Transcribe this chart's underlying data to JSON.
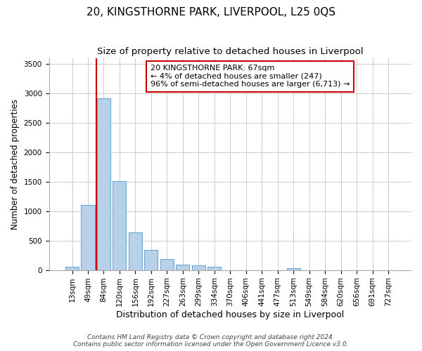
{
  "title": "20, KINGSTHORNE PARK, LIVERPOOL, L25 0QS",
  "subtitle": "Size of property relative to detached houses in Liverpool",
  "xlabel": "Distribution of detached houses by size in Liverpool",
  "ylabel": "Number of detached properties",
  "bar_color": "#b8d0e8",
  "bar_edge_color": "#6aaad4",
  "background_color": "#ffffff",
  "grid_color": "#cccccc",
  "categories": [
    "13sqm",
    "49sqm",
    "84sqm",
    "120sqm",
    "156sqm",
    "192sqm",
    "227sqm",
    "263sqm",
    "299sqm",
    "334sqm",
    "370sqm",
    "406sqm",
    "441sqm",
    "477sqm",
    "513sqm",
    "549sqm",
    "584sqm",
    "620sqm",
    "656sqm",
    "691sqm",
    "727sqm"
  ],
  "values": [
    60,
    1110,
    2920,
    1510,
    640,
    345,
    185,
    90,
    80,
    55,
    0,
    0,
    0,
    0,
    30,
    0,
    0,
    0,
    0,
    0,
    0
  ],
  "ylim": [
    0,
    3600
  ],
  "yticks": [
    0,
    500,
    1000,
    1500,
    2000,
    2500,
    3000,
    3500
  ],
  "property_line_color": "#cc0000",
  "annotation_box_text": "20 KINGSTHORNE PARK: 67sqm\n← 4% of detached houses are smaller (247)\n96% of semi-detached houses are larger (6,713) →",
  "annotation_box_color": "#cc0000",
  "footer_line1": "Contains HM Land Registry data © Crown copyright and database right 2024.",
  "footer_line2": "Contains public sector information licensed under the Open Government Licence v3.0.",
  "title_fontsize": 11,
  "subtitle_fontsize": 9.5,
  "xlabel_fontsize": 9,
  "ylabel_fontsize": 8.5,
  "tick_fontsize": 7.5,
  "annotation_fontsize": 8,
  "footer_fontsize": 6.5
}
